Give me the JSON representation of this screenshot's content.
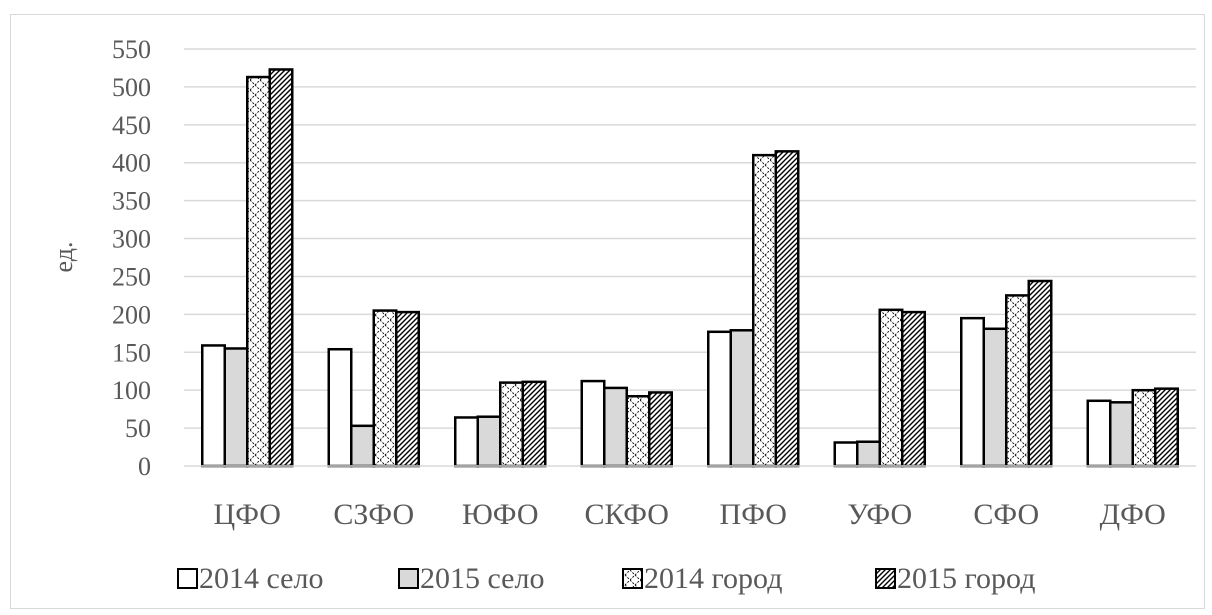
{
  "chart_data": {
    "type": "bar",
    "title": "",
    "xlabel": "",
    "ylabel": "ед.",
    "ylim": [
      0,
      550
    ],
    "ytick_step": 50,
    "grid": true,
    "legend_position": "bottom",
    "categories": [
      "ЦФО",
      "СЗФО",
      "ЮФО",
      "СКФО",
      "ПФО",
      "УФО",
      "СФО",
      "ДФО"
    ],
    "series": [
      {
        "name": "2014 село",
        "pattern": "solid-white",
        "values": [
          159,
          154,
          64,
          112,
          177,
          31,
          195,
          86
        ]
      },
      {
        "name": "2015 село",
        "pattern": "solid-gray",
        "values": [
          155,
          53,
          65,
          103,
          179,
          32,
          181,
          84
        ]
      },
      {
        "name": "2014 город",
        "pattern": "cross-hatch",
        "values": [
          513,
          205,
          110,
          92,
          410,
          206,
          225,
          100
        ]
      },
      {
        "name": "2015 город",
        "pattern": "dense-diagonal",
        "values": [
          523,
          203,
          111,
          97,
          415,
          203,
          244,
          102
        ]
      }
    ]
  },
  "colors": {
    "gridline": "#d9d9d9",
    "text": "#595959",
    "bar_stroke": "#000000",
    "gray_fill": "#d9d9d9"
  }
}
